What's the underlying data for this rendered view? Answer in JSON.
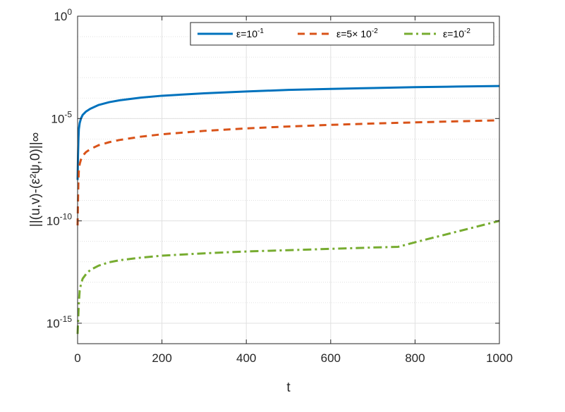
{
  "chart_data": {
    "type": "line",
    "xlabel": "t",
    "ylabel": "||(u,v)-(ε²ψ,0)||∞",
    "xlim": [
      0,
      1000
    ],
    "ylim": [
      1e-16,
      1
    ],
    "yscale": "log",
    "grid": true,
    "legend_position": "top-right",
    "x_ticks": [
      0,
      200,
      400,
      600,
      800,
      1000
    ],
    "x_tick_labels": [
      "0",
      "200",
      "400",
      "600",
      "800",
      "1000"
    ],
    "y_ticks": [
      {
        "value": 1,
        "base": "10",
        "exp": "0"
      },
      {
        "value": 1e-05,
        "base": "10",
        "exp": "-5"
      },
      {
        "value": 1e-10,
        "base": "10",
        "exp": "-10"
      },
      {
        "value": 1e-15,
        "base": "10",
        "exp": "-15"
      }
    ],
    "series": [
      {
        "name": "ε=10⁻¹",
        "legend_prefix": "ε=10",
        "legend_exp": "-1",
        "color": "#0072BD",
        "style": "solid",
        "x": [
          0,
          1,
          2,
          3,
          5,
          8,
          12,
          20,
          30,
          50,
          75,
          100,
          150,
          200,
          300,
          400,
          500,
          600,
          700,
          800,
          900,
          1000
        ],
        "y": [
          1e-08,
          1.5e-07,
          1e-06,
          3e-06,
          6e-06,
          1e-05,
          1.5e-05,
          2.2e-05,
          3e-05,
          4.6e-05,
          6.3e-05,
          7.8e-05,
          0.000105,
          0.00013,
          0.00017,
          0.00021,
          0.00025,
          0.00028,
          0.00031,
          0.00034,
          0.000365,
          0.00039
        ]
      },
      {
        "name": "ε=5× 10⁻²",
        "legend_prefix": "ε=5× 10",
        "legend_exp": "-2",
        "color": "#D95319",
        "style": "dashed",
        "x": [
          0,
          1,
          2,
          3,
          5,
          8,
          12,
          20,
          30,
          50,
          75,
          100,
          150,
          200,
          300,
          400,
          500,
          600,
          700,
          800,
          900,
          1000
        ],
        "y": [
          6e-11,
          1e-09,
          1e-08,
          3e-08,
          6e-08,
          1e-07,
          1.5e-07,
          2.3e-07,
          3.2e-07,
          5e-07,
          7e-07,
          9e-07,
          1.3e-06,
          1.7e-06,
          2.5e-06,
          3.3e-06,
          4.1e-06,
          4.9e-06,
          5.7e-06,
          6.5e-06,
          7.3e-06,
          8.2e-06
        ]
      },
      {
        "name": "ε=10⁻²",
        "legend_prefix": "ε=10",
        "legend_exp": "-2",
        "color": "#77AC30",
        "style": "dashdot",
        "x": [
          0,
          2,
          3,
          5,
          8,
          12,
          20,
          30,
          50,
          75,
          100,
          150,
          200,
          300,
          400,
          500,
          600,
          700,
          760,
          800,
          900,
          1000
        ],
        "y": [
          3e-16,
          3e-15,
          1e-14,
          4e-14,
          8e-14,
          1.5e-13,
          2.5e-13,
          4e-13,
          6.5e-13,
          9.5e-13,
          1.2e-12,
          1.6e-12,
          2e-12,
          2.6e-12,
          3.2e-12,
          3.7e-12,
          4.3e-12,
          5e-12,
          5.4e-12,
          9e-12,
          3e-11,
          1e-10
        ]
      }
    ]
  }
}
